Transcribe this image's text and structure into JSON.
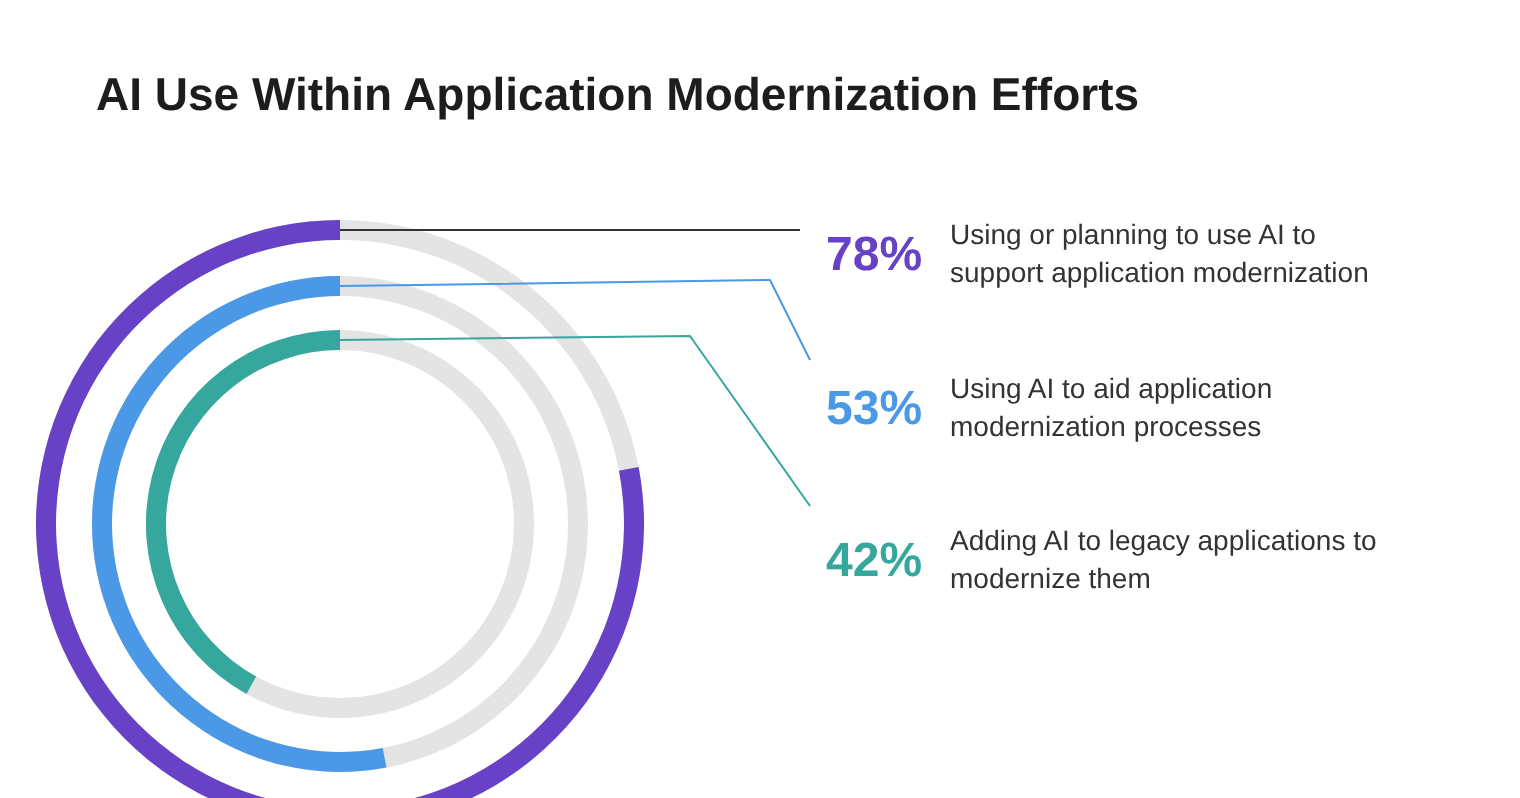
{
  "chart_data": {
    "type": "other",
    "title": "AI Use Within Application Modernization Efforts",
    "categories": [
      "Using or planning to use AI to support application modernization",
      "Using AI to aid application modernization processes",
      "Adding AI to legacy applications to modernize them"
    ],
    "values": [
      78,
      53,
      42
    ],
    "value_labels": [
      "78%",
      "53%",
      "42%"
    ],
    "colors": [
      "#6741c6",
      "#4a98e6",
      "#36a79c"
    ]
  }
}
